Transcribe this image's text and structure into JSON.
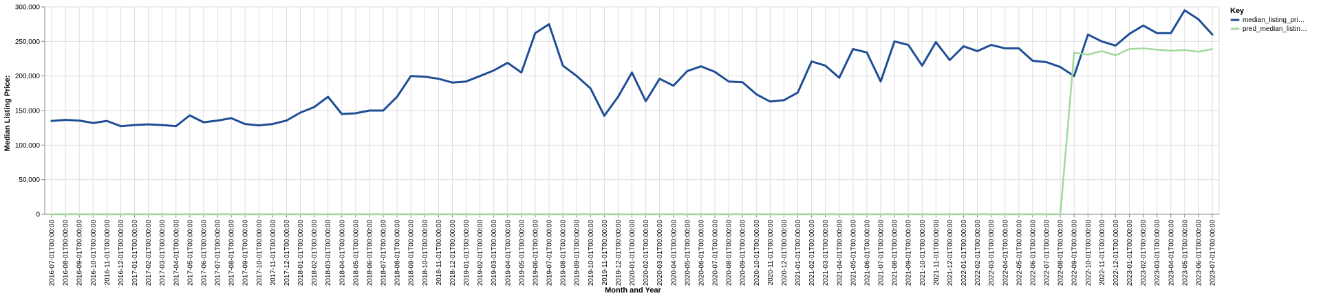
{
  "chart_data": {
    "type": "line",
    "xlabel": "Month and Year",
    "ylabel": "Median Listing Price:",
    "ylim": [
      0,
      300000
    ],
    "yticks": [
      "0",
      "50,000",
      "100,000",
      "150,000",
      "200,000",
      "250,000",
      "300,000"
    ],
    "grid": true,
    "legend": {
      "title": "Key",
      "placement": "top-right",
      "entries": [
        "median_listing_pri…",
        "pred_median_listin…"
      ]
    },
    "categories": [
      "2016-07-01T00:00:00",
      "2016-08-01T00:00:00",
      "2016-09-01T00:00:00",
      "2016-10-01T00:00:00",
      "2016-11-01T00:00:00",
      "2016-12-01T00:00:00",
      "2017-01-01T00:00:00",
      "2017-02-01T00:00:00",
      "2017-03-01T00:00:00",
      "2017-04-01T00:00:00",
      "2017-05-01T00:00:00",
      "2017-06-01T00:00:00",
      "2017-07-01T00:00:00",
      "2017-08-01T00:00:00",
      "2017-09-01T00:00:00",
      "2017-10-01T00:00:00",
      "2017-11-01T00:00:00",
      "2017-12-01T00:00:00",
      "2018-01-01T00:00:00",
      "2018-02-01T00:00:00",
      "2018-03-01T00:00:00",
      "2018-04-01T00:00:00",
      "2018-05-01T00:00:00",
      "2018-06-01T00:00:00",
      "2018-07-01T00:00:00",
      "2018-08-01T00:00:00",
      "2018-09-01T00:00:00",
      "2018-10-01T00:00:00",
      "2018-11-01T00:00:00",
      "2018-12-01T00:00:00",
      "2019-01-01T00:00:00",
      "2019-02-01T00:00:00",
      "2019-03-01T00:00:00",
      "2019-04-01T00:00:00",
      "2019-05-01T00:00:00",
      "2019-06-01T00:00:00",
      "2019-07-01T00:00:00",
      "2019-08-01T00:00:00",
      "2019-09-01T00:00:00",
      "2019-10-01T00:00:00",
      "2019-11-01T00:00:00",
      "2019-12-01T00:00:00",
      "2020-01-01T00:00:00",
      "2020-02-01T00:00:00",
      "2020-03-01T00:00:00",
      "2020-04-01T00:00:00",
      "2020-05-01T00:00:00",
      "2020-06-01T00:00:00",
      "2020-07-01T00:00:00",
      "2020-08-01T00:00:00",
      "2020-09-01T00:00:00",
      "2020-10-01T00:00:00",
      "2020-11-01T00:00:00",
      "2020-12-01T00:00:00",
      "2021-01-01T00:00:00",
      "2021-02-01T00:00:00",
      "2021-03-01T00:00:00",
      "2021-04-01T00:00:00",
      "2021-05-01T00:00:00",
      "2021-06-01T00:00:00",
      "2021-07-01T00:00:00",
      "2021-08-01T00:00:00",
      "2021-09-01T00:00:00",
      "2021-10-01T00:00:00",
      "2021-11-01T00:00:00",
      "2021-12-01T00:00:00",
      "2022-01-01T00:00:00",
      "2022-02-01T00:00:00",
      "2022-03-01T00:00:00",
      "2022-04-01T00:00:00",
      "2022-05-01T00:00:00",
      "2022-06-01T00:00:00",
      "2022-07-01T00:00:00",
      "2022-08-01T00:00:00",
      "2022-09-01T00:00:00",
      "2022-10-01T00:00:00",
      "2022-11-01T00:00:00",
      "2022-12-01T00:00:00",
      "2023-01-01T00:00:00",
      "2023-02-01T00:00:00",
      "2023-03-01T00:00:00",
      "2023-04-01T00:00:00",
      "2023-05-01T00:00:00",
      "2023-06-01T00:00:00",
      "2023-07-01T00:00:00"
    ],
    "series": [
      {
        "name": "median_listing_pri…",
        "color": "#1f4e96",
        "values": [
          135000,
          136500,
          135500,
          132000,
          135000,
          127500,
          129000,
          130000,
          129000,
          127500,
          143000,
          133000,
          135500,
          139000,
          130500,
          128500,
          130500,
          135500,
          147000,
          155000,
          170000,
          145000,
          146000,
          150000,
          150000,
          170000,
          200000,
          199000,
          196000,
          190500,
          192000,
          200000,
          208000,
          219000,
          205000,
          262000,
          275000,
          215000,
          200000,
          182000,
          142500,
          170000,
          205000,
          163500,
          196000,
          186000,
          207000,
          214000,
          206000,
          192000,
          191000,
          173500,
          163000,
          165000,
          176000,
          221000,
          215000,
          197500,
          239000,
          234000,
          192000,
          250000,
          245000,
          215000,
          249000,
          223000,
          243000,
          236000,
          245000,
          240000,
          240000,
          222000,
          220000,
          213000,
          200000,
          260000,
          250000,
          244000,
          261000,
          273000,
          262000,
          262000,
          295000,
          282000,
          260000
        ]
      },
      {
        "name": "pred_median_listin…",
        "color": "#a1d99b",
        "values": [
          0,
          0,
          0,
          0,
          0,
          0,
          0,
          0,
          0,
          0,
          0,
          0,
          0,
          0,
          0,
          0,
          0,
          0,
          0,
          0,
          0,
          0,
          0,
          0,
          0,
          0,
          0,
          0,
          0,
          0,
          0,
          0,
          0,
          0,
          0,
          0,
          0,
          0,
          0,
          0,
          0,
          0,
          0,
          0,
          0,
          0,
          0,
          0,
          0,
          0,
          0,
          0,
          0,
          0,
          0,
          0,
          0,
          0,
          0,
          0,
          0,
          0,
          0,
          0,
          0,
          0,
          0,
          0,
          0,
          0,
          0,
          0,
          0,
          0,
          233500,
          231000,
          236000,
          230000,
          239000,
          240000,
          238000,
          236500,
          237500,
          235000,
          239000
        ]
      }
    ]
  }
}
